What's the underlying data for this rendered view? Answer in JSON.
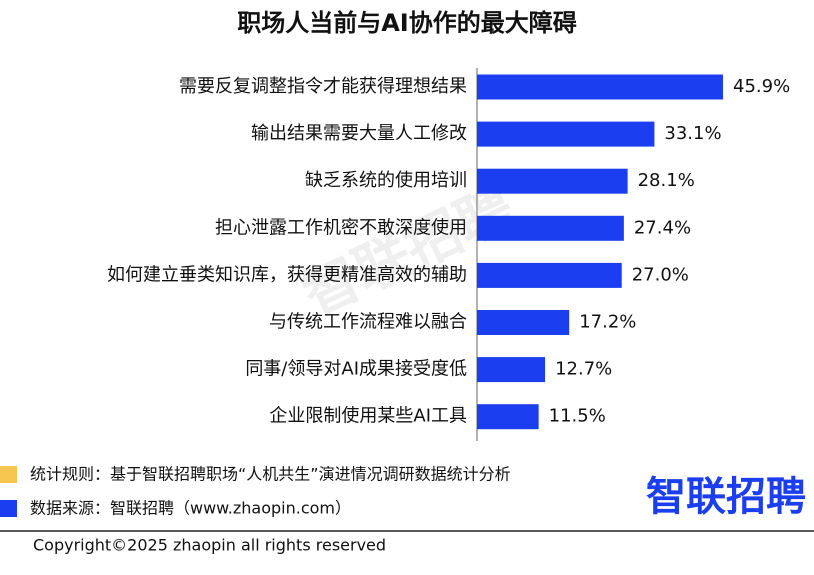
{
  "chart_data": {
    "type": "bar",
    "orientation": "horizontal",
    "title": "职场人当前与AI协作的最大障碍",
    "categories": [
      "需要反复调整指令才能获得理想结果",
      "输出结果需要大量人工修改",
      "缺乏系统的使用培训",
      "担心泄露工作机密不敢深度使用",
      "如何建立垂类知识库，获得更精准高效的辅助",
      "与传统工作流程难以融合",
      "同事/领导对AI成果接受度低",
      "企业限制使用某些AI工具"
    ],
    "values": [
      45.9,
      33.1,
      28.1,
      27.4,
      27.0,
      17.2,
      12.7,
      11.5
    ],
    "value_labels": [
      "45.9%",
      "33.1%",
      "28.1%",
      "27.4%",
      "27.0%",
      "17.2%",
      "12.7%",
      "11.5%"
    ],
    "color": "#1b3ff0"
  },
  "watermark": "智联招聘",
  "notes": [
    "统计规则：基于智联招聘职场“人机共生”演进情况调研数据统计分析",
    "数据来源：智联招聘（www.zhaopin.com）"
  ],
  "logo": "智联招聘",
  "copyright": "Copyright©2025 zhaopin all rights reserved"
}
